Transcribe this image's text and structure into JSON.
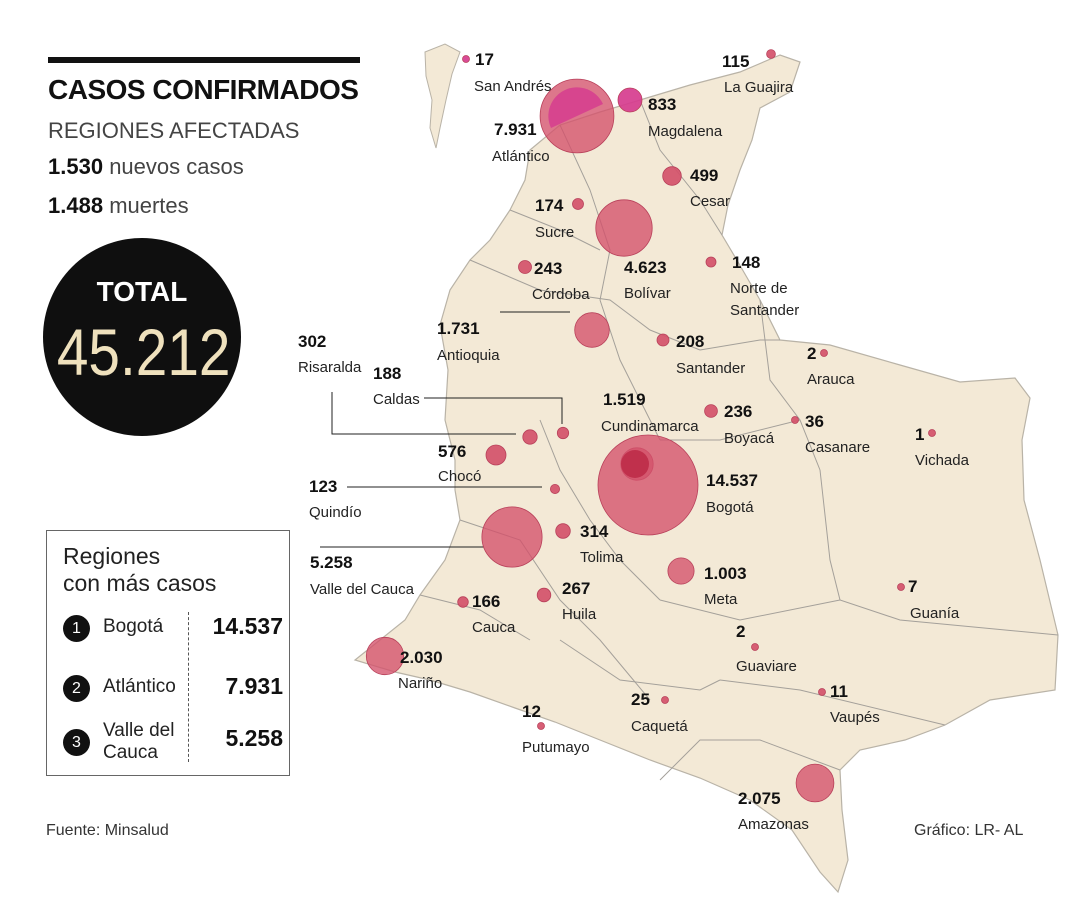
{
  "header": {
    "title": "CASOS CONFIRMADOS",
    "subtitle": "REGIONES AFECTADAS",
    "new_cases_value": "1.530",
    "new_cases_label": "nuevos casos",
    "deaths_value": "1.488",
    "deaths_label": "muertes"
  },
  "total": {
    "label": "TOTAL",
    "value": "45.212"
  },
  "ranking": {
    "title_line1": "Regiones",
    "title_line2": "con más casos",
    "items": [
      {
        "rank": "1",
        "name_line1": "Bogotá",
        "name_line2": "",
        "value": "14.537"
      },
      {
        "rank": "2",
        "name_line1": "Atlántico",
        "name_line2": "",
        "value": "7.931"
      },
      {
        "rank": "3",
        "name_line1": "Valle del",
        "name_line2": "Cauca",
        "value": "5.258"
      }
    ]
  },
  "source": "Fuente: Minsalud",
  "credit": "Gráfico: LR- AL",
  "colors": {
    "bubble": "#d4516a",
    "bubble_highlight": "#d63c8e",
    "land": "#f3e9d6",
    "border": "#9a9a9a"
  },
  "regions": [
    {
      "name": "San Andrés",
      "cases": 17,
      "value": "17"
    },
    {
      "name": "La Guajira",
      "cases": 115,
      "value": "115"
    },
    {
      "name": "Magdalena",
      "cases": 833,
      "value": "833"
    },
    {
      "name": "Atlántico",
      "cases": 7931,
      "value": "7.931"
    },
    {
      "name": "Cesar",
      "cases": 499,
      "value": "499"
    },
    {
      "name": "Sucre",
      "cases": 174,
      "value": "174"
    },
    {
      "name": "Bolívar",
      "cases": 4623,
      "value": "4.623"
    },
    {
      "name": "Córdoba",
      "cases": 243,
      "value": "243"
    },
    {
      "name": "Norte de Santander",
      "cases": 148,
      "value": "148"
    },
    {
      "name": "Antioquia",
      "cases": 1731,
      "value": "1.731"
    },
    {
      "name": "Santander",
      "cases": 208,
      "value": "208"
    },
    {
      "name": "Arauca",
      "cases": 2,
      "value": "2"
    },
    {
      "name": "Risaralda",
      "cases": 302,
      "value": "302"
    },
    {
      "name": "Caldas",
      "cases": 188,
      "value": "188"
    },
    {
      "name": "Cundinamarca",
      "cases": 1519,
      "value": "1.519"
    },
    {
      "name": "Boyacá",
      "cases": 236,
      "value": "236"
    },
    {
      "name": "Casanare",
      "cases": 36,
      "value": "36"
    },
    {
      "name": "Vichada",
      "cases": 1,
      "value": "1"
    },
    {
      "name": "Chocó",
      "cases": 576,
      "value": "576"
    },
    {
      "name": "Bogotá",
      "cases": 14537,
      "value": "14.537"
    },
    {
      "name": "Quindío",
      "cases": 123,
      "value": "123"
    },
    {
      "name": "Tolima",
      "cases": 314,
      "value": "314"
    },
    {
      "name": "Valle del Cauca",
      "cases": 5258,
      "value": "5.258"
    },
    {
      "name": "Meta",
      "cases": 1003,
      "value": "1.003"
    },
    {
      "name": "Cauca",
      "cases": 166,
      "value": "166"
    },
    {
      "name": "Huila",
      "cases": 267,
      "value": "267"
    },
    {
      "name": "Guanía",
      "cases": 7,
      "value": "7"
    },
    {
      "name": "Nariño",
      "cases": 2030,
      "value": "2.030"
    },
    {
      "name": "Guaviare",
      "cases": 2,
      "value": "2"
    },
    {
      "name": "Caquetá",
      "cases": 25,
      "value": "25"
    },
    {
      "name": "Vaupés",
      "cases": 11,
      "value": "11"
    },
    {
      "name": "Putumayo",
      "cases": 12,
      "value": "12"
    },
    {
      "name": "Amazonas",
      "cases": 2075,
      "value": "2.075"
    }
  ]
}
